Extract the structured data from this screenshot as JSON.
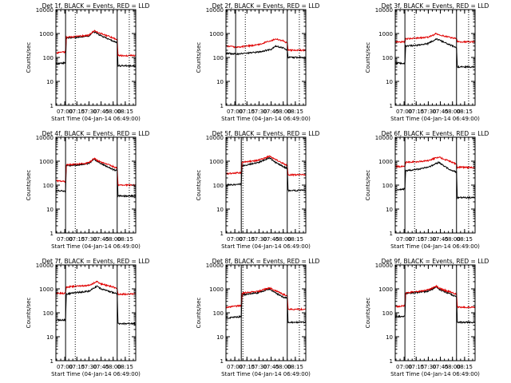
{
  "colors": {
    "events": "#000000",
    "lld": "#e00000",
    "axes": "#000000",
    "background": "#ffffff"
  },
  "chart_data": [
    {
      "type": "line",
      "title": "Det 1f, BLACK = Events, RED = LLD",
      "xlabel": "Start Time (04-Jan-14 06:49:00)",
      "ylabel": "Counts/sec",
      "xlim": [
        "06:49",
        "08:28"
      ],
      "ylim": [
        1,
        10000
      ],
      "yscale": "log",
      "xticks": [
        "07:00",
        "07:15",
        "07:30",
        "07:45",
        "08:00",
        "08:15"
      ],
      "yticks": [
        "1",
        "10",
        "100",
        "1000",
        "10000"
      ],
      "markers": {
        "solid": [
          "07:01",
          "08:05"
        ],
        "dotted": [
          "07:13",
          "08:20"
        ]
      },
      "series": [
        {
          "x": [
            "06:49",
            "07:01",
            "07:02",
            "07:15",
            "07:30",
            "07:36",
            "07:45",
            "08:00",
            "08:05",
            "08:06",
            "08:28"
          ],
          "values": [
            55,
            60,
            650,
            700,
            800,
            1200,
            800,
            480,
            420,
            45,
            45
          ]
        },
        {
          "x": [
            "06:49",
            "07:01",
            "07:02",
            "07:15",
            "07:30",
            "07:36",
            "07:45",
            "08:00",
            "08:05",
            "08:06",
            "08:28"
          ],
          "values": [
            150,
            170,
            700,
            750,
            850,
            1300,
            1000,
            650,
            550,
            120,
            120
          ]
        }
      ]
    },
    {
      "type": "line",
      "title": "Det 2f, BLACK = Events, RED = LLD",
      "xlabel": "Start Time (04-Jan-14 06:49:00)",
      "ylabel": "Counts/sec",
      "xlim": [
        "06:49",
        "08:28"
      ],
      "ylim": [
        1,
        10000
      ],
      "yscale": "log",
      "xticks": [
        "07:00",
        "07:15",
        "07:30",
        "07:45",
        "08:00",
        "08:15"
      ],
      "yticks": [
        "1",
        "10",
        "100",
        "1000",
        "10000"
      ],
      "markers": {
        "solid": [
          "07:01",
          "08:05"
        ],
        "dotted": [
          "07:13",
          "08:20"
        ]
      },
      "series": [
        {
          "x": [
            "06:49",
            "07:01",
            "07:02",
            "07:15",
            "07:30",
            "07:45",
            "07:50",
            "08:00",
            "08:05",
            "08:06",
            "08:28"
          ],
          "values": [
            150,
            140,
            140,
            150,
            170,
            220,
            300,
            250,
            200,
            100,
            100
          ]
        },
        {
          "x": [
            "06:49",
            "07:01",
            "07:02",
            "07:15",
            "07:30",
            "07:45",
            "07:50",
            "08:00",
            "08:05",
            "08:06",
            "08:28"
          ],
          "values": [
            300,
            270,
            260,
            300,
            350,
            500,
            600,
            500,
            400,
            200,
            200
          ]
        }
      ]
    },
    {
      "type": "line",
      "title": "Det 3f, BLACK = Events, RED = LLD",
      "xlabel": "Start Time (04-Jan-14 06:49:00)",
      "ylabel": "Counts/sec",
      "xlim": [
        "06:49",
        "08:28"
      ],
      "ylim": [
        1,
        10000
      ],
      "yscale": "log",
      "xticks": [
        "07:00",
        "07:15",
        "07:30",
        "07:45",
        "08:00",
        "08:15"
      ],
      "yticks": [
        "1",
        "10",
        "100",
        "1000",
        "10000"
      ],
      "markers": {
        "solid": [
          "07:01",
          "08:05"
        ],
        "dotted": [
          "07:13",
          "08:20"
        ]
      },
      "series": [
        {
          "x": [
            "06:49",
            "07:01",
            "07:02",
            "07:15",
            "07:30",
            "07:40",
            "07:45",
            "08:00",
            "08:05",
            "08:06",
            "08:28"
          ],
          "values": [
            60,
            55,
            300,
            320,
            380,
            600,
            500,
            300,
            250,
            40,
            40
          ]
        },
        {
          "x": [
            "06:49",
            "07:01",
            "07:02",
            "07:15",
            "07:30",
            "07:40",
            "07:45",
            "08:00",
            "08:05",
            "08:06",
            "08:28"
          ],
          "values": [
            450,
            450,
            600,
            650,
            700,
            1000,
            850,
            650,
            600,
            450,
            450
          ]
        }
      ]
    },
    {
      "type": "line",
      "title": "Det 4f, BLACK = Events, RED = LLD",
      "xlabel": "Start Time (04-Jan-14 06:49:00)",
      "ylabel": "Counts/sec",
      "xlim": [
        "06:49",
        "08:28"
      ],
      "ylim": [
        1,
        10000
      ],
      "yscale": "log",
      "xticks": [
        "07:00",
        "07:15",
        "07:30",
        "07:45",
        "08:00",
        "08:15"
      ],
      "yticks": [
        "1",
        "10",
        "100",
        "1000",
        "10000"
      ],
      "markers": {
        "solid": [
          "07:01",
          "08:05"
        ],
        "dotted": [
          "07:13",
          "08:20"
        ]
      },
      "series": [
        {
          "x": [
            "06:49",
            "07:01",
            "07:02",
            "07:15",
            "07:30",
            "07:36",
            "07:45",
            "08:00",
            "08:05",
            "08:06",
            "08:28"
          ],
          "values": [
            60,
            55,
            650,
            700,
            800,
            1200,
            800,
            450,
            400,
            35,
            35
          ]
        },
        {
          "x": [
            "06:49",
            "07:01",
            "07:02",
            "07:15",
            "07:30",
            "07:36",
            "07:45",
            "08:00",
            "08:05",
            "08:06",
            "08:28"
          ],
          "values": [
            150,
            140,
            700,
            750,
            850,
            1300,
            900,
            600,
            500,
            100,
            100
          ]
        }
      ]
    },
    {
      "type": "line",
      "title": "Det 5f, BLACK = Events, RED = LLD",
      "xlabel": "Start Time (04-Jan-14 06:49:00)",
      "ylabel": "Counts/sec",
      "xlim": [
        "06:49",
        "08:28"
      ],
      "ylim": [
        1,
        10000
      ],
      "yscale": "log",
      "xticks": [
        "07:00",
        "07:15",
        "07:30",
        "07:45",
        "08:00",
        "08:15"
      ],
      "yticks": [
        "1",
        "10",
        "100",
        "1000",
        "10000"
      ],
      "markers": {
        "solid": [
          "07:08",
          "08:05"
        ],
        "dotted": [
          "07:10",
          "08:20"
        ]
      },
      "series": [
        {
          "x": [
            "06:49",
            "07:08",
            "07:09",
            "07:15",
            "07:30",
            "07:43",
            "07:50",
            "08:00",
            "08:05",
            "08:06",
            "08:28"
          ],
          "values": [
            100,
            110,
            650,
            700,
            900,
            1400,
            900,
            600,
            500,
            60,
            60
          ]
        },
        {
          "x": [
            "06:49",
            "07:08",
            "07:09",
            "07:15",
            "07:30",
            "07:43",
            "07:50",
            "08:00",
            "08:05",
            "08:06",
            "08:28"
          ],
          "values": [
            300,
            330,
            900,
            950,
            1100,
            1600,
            1200,
            800,
            650,
            270,
            270
          ]
        }
      ]
    },
    {
      "type": "line",
      "title": "Det 6f, BLACK = Events, RED = LLD",
      "xlabel": "Start Time (04-Jan-14 06:49:00)",
      "ylabel": "Counts/sec",
      "xlim": [
        "06:49",
        "08:28"
      ],
      "ylim": [
        1,
        10000
      ],
      "yscale": "log",
      "xticks": [
        "07:00",
        "07:15",
        "07:30",
        "07:45",
        "08:00",
        "08:15"
      ],
      "yticks": [
        "1",
        "10",
        "100",
        "1000",
        "10000"
      ],
      "markers": {
        "solid": [
          "07:01",
          "08:05"
        ],
        "dotted": [
          "07:13",
          "08:20"
        ]
      },
      "series": [
        {
          "x": [
            "06:49",
            "07:01",
            "07:02",
            "07:15",
            "07:30",
            "07:43",
            "07:50",
            "08:00",
            "08:05",
            "08:06",
            "08:28"
          ],
          "values": [
            60,
            70,
            400,
            450,
            550,
            900,
            600,
            400,
            350,
            30,
            30
          ]
        },
        {
          "x": [
            "06:49",
            "07:01",
            "07:02",
            "07:15",
            "07:30",
            "07:43",
            "07:50",
            "08:00",
            "08:05",
            "08:06",
            "08:28"
          ],
          "values": [
            600,
            600,
            900,
            950,
            1050,
            1500,
            1200,
            900,
            750,
            550,
            550
          ]
        }
      ]
    },
    {
      "type": "line",
      "title": "Det 7f, BLACK = Events, RED = LLD",
      "xlabel": "Start Time (04-Jan-14 06:49:00)",
      "ylabel": "Counts/sec",
      "xlim": [
        "06:49",
        "08:28"
      ],
      "ylim": [
        1,
        10000
      ],
      "yscale": "log",
      "xticks": [
        "07:00",
        "07:15",
        "07:30",
        "07:45",
        "08:00",
        "08:15"
      ],
      "yticks": [
        "1",
        "10",
        "100",
        "1000",
        "10000"
      ],
      "markers": {
        "solid": [
          "07:01",
          "08:05"
        ],
        "dotted": [
          "07:13",
          "08:20"
        ]
      },
      "series": [
        {
          "x": [
            "06:49",
            "07:01",
            "07:02",
            "07:15",
            "07:30",
            "07:40",
            "07:45",
            "08:00",
            "08:05",
            "08:06",
            "08:28"
          ],
          "values": [
            50,
            50,
            600,
            700,
            800,
            1300,
            1000,
            700,
            600,
            35,
            35
          ]
        },
        {
          "x": [
            "06:49",
            "07:01",
            "07:02",
            "07:15",
            "07:30",
            "07:40",
            "07:45",
            "08:00",
            "08:05",
            "08:06",
            "08:28"
          ],
          "values": [
            650,
            650,
            1200,
            1300,
            1400,
            2000,
            1600,
            1200,
            1000,
            600,
            600
          ]
        }
      ]
    },
    {
      "type": "line",
      "title": "Det 8f, BLACK = Events, RED = LLD",
      "xlabel": "Start Time (04-Jan-14 06:49:00)",
      "ylabel": "Counts/sec",
      "xlim": [
        "06:49",
        "08:28"
      ],
      "ylim": [
        1,
        10000
      ],
      "yscale": "log",
      "xticks": [
        "07:00",
        "07:15",
        "07:30",
        "07:45",
        "08:00",
        "08:15"
      ],
      "yticks": [
        "1",
        "10",
        "100",
        "1000",
        "10000"
      ],
      "markers": {
        "solid": [
          "07:08",
          "08:05"
        ],
        "dotted": [
          "07:10",
          "08:20"
        ]
      },
      "series": [
        {
          "x": [
            "06:49",
            "07:08",
            "07:09",
            "07:15",
            "07:30",
            "07:43",
            "07:50",
            "08:00",
            "08:05",
            "08:06",
            "08:28"
          ],
          "values": [
            60,
            70,
            550,
            600,
            700,
            1000,
            700,
            450,
            400,
            40,
            40
          ]
        },
        {
          "x": [
            "06:49",
            "07:08",
            "07:09",
            "07:15",
            "07:30",
            "07:43",
            "07:50",
            "08:00",
            "08:05",
            "08:06",
            "08:28"
          ],
          "values": [
            170,
            200,
            650,
            700,
            800,
            1100,
            850,
            600,
            500,
            140,
            140
          ]
        }
      ]
    },
    {
      "type": "line",
      "title": "Det 9f, BLACK = Events, RED = LLD",
      "xlabel": "Start Time (04-Jan-14 06:49:00)",
      "ylabel": "Counts/sec",
      "xlim": [
        "06:49",
        "08:28"
      ],
      "ylim": [
        1,
        10000
      ],
      "yscale": "log",
      "xticks": [
        "07:00",
        "07:15",
        "07:30",
        "07:45",
        "08:00",
        "08:15"
      ],
      "yticks": [
        "1",
        "10",
        "100",
        "1000",
        "10000"
      ],
      "markers": {
        "solid": [
          "07:01",
          "08:05"
        ],
        "dotted": [
          "07:13",
          "08:20"
        ]
      },
      "series": [
        {
          "x": [
            "06:49",
            "07:01",
            "07:02",
            "07:15",
            "07:30",
            "07:40",
            "07:45",
            "08:00",
            "08:05",
            "08:06",
            "08:28"
          ],
          "values": [
            70,
            70,
            650,
            700,
            800,
            1200,
            900,
            550,
            450,
            40,
            40
          ]
        },
        {
          "x": [
            "06:49",
            "07:01",
            "07:02",
            "07:15",
            "07:30",
            "07:40",
            "07:45",
            "08:00",
            "08:05",
            "08:06",
            "08:28"
          ],
          "values": [
            180,
            200,
            700,
            750,
            900,
            1300,
            1000,
            700,
            600,
            170,
            170
          ]
        }
      ]
    }
  ]
}
